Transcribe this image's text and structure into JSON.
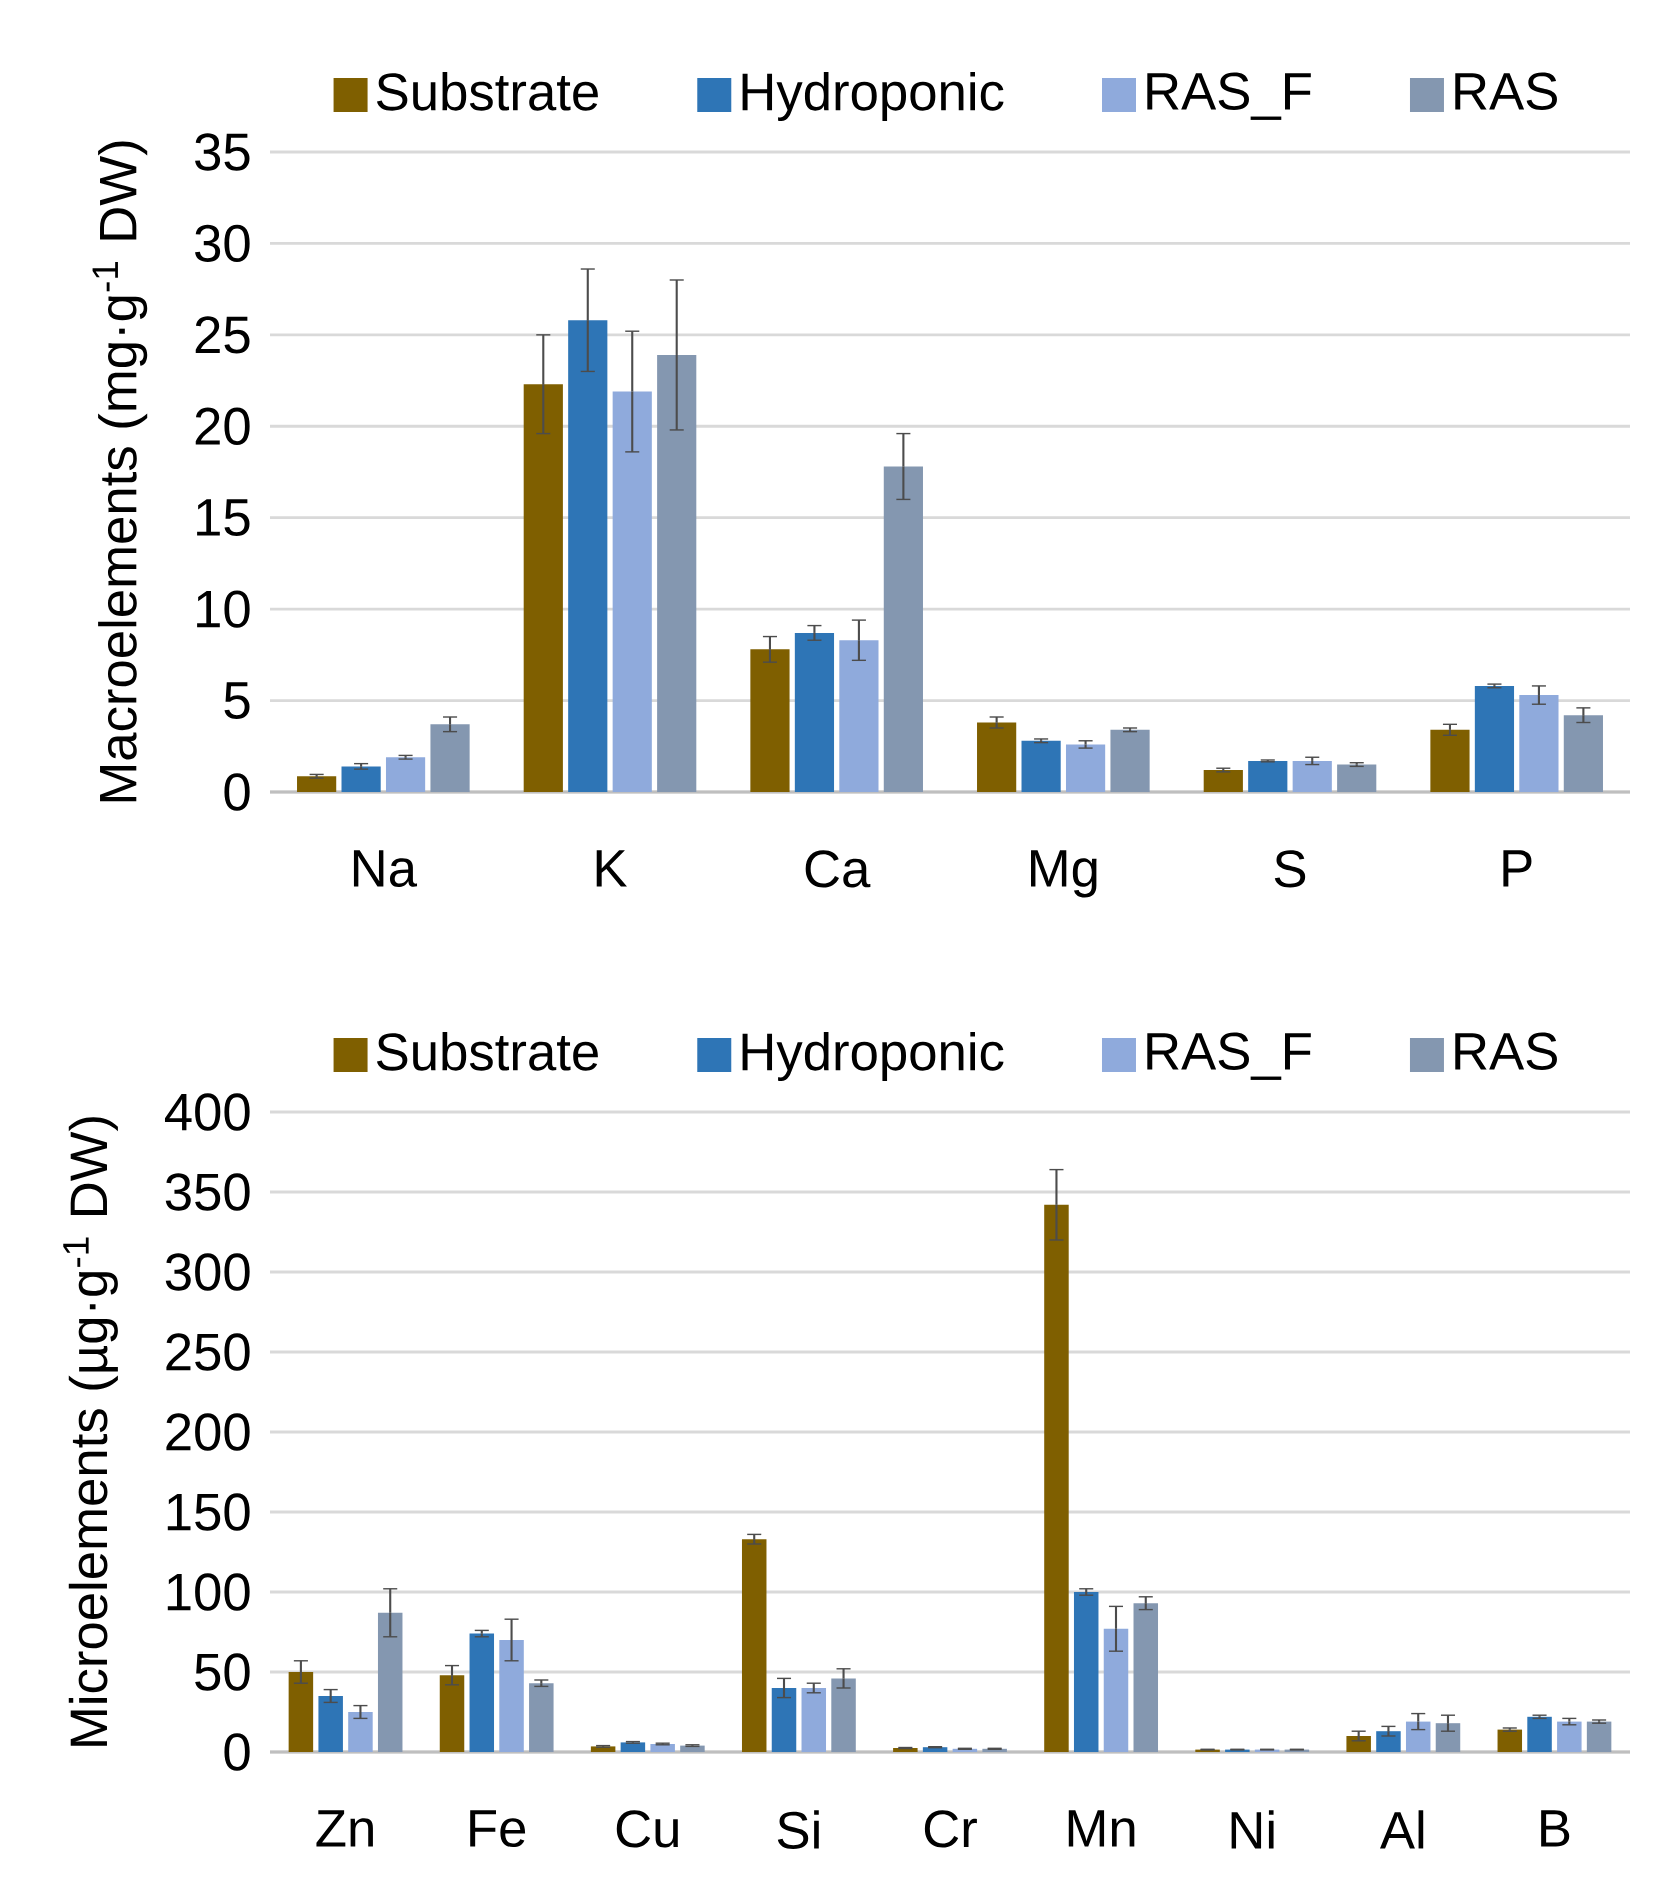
{
  "chart_data": [
    {
      "type": "bar",
      "ylabel": "Macroelements (mg·g$^{-1}$ DW)",
      "categories": [
        "Na",
        "K",
        "Ca",
        "Mg",
        "S",
        "P"
      ],
      "series": [
        {
          "name": "Substrate",
          "color": "#7f5f00",
          "values": [
            0.86,
            22.3,
            7.8,
            3.8,
            1.2,
            3.4
          ],
          "errors": [
            0.1,
            2.7,
            0.7,
            0.3,
            0.1,
            0.3
          ]
        },
        {
          "name": "Hydroponic",
          "color": "#2e75b6",
          "values": [
            1.4,
            25.8,
            8.7,
            2.8,
            1.7,
            5.8
          ],
          "errors": [
            0.15,
            2.8,
            0.4,
            0.1,
            0.05,
            0.1
          ]
        },
        {
          "name": "RAS_F",
          "color": "#8faadc",
          "values": [
            1.9,
            21.9,
            8.3,
            2.6,
            1.7,
            5.3
          ],
          "errors": [
            0.1,
            3.3,
            1.1,
            0.2,
            0.2,
            0.5
          ]
        },
        {
          "name": "RAS",
          "color": "#8497b0",
          "values": [
            3.7,
            23.9,
            17.8,
            3.4,
            1.5,
            4.2
          ],
          "errors": [
            0.4,
            4.1,
            1.8,
            0.1,
            0.1,
            0.4
          ]
        }
      ],
      "ylim": [
        0,
        35
      ],
      "yticks": [
        0,
        5,
        10,
        15,
        20,
        25,
        30,
        35
      ],
      "grid": "y",
      "legend": "top"
    },
    {
      "type": "bar",
      "ylabel": "Microelements (µg·g$^{-1}$ DW)",
      "categories": [
        "Zn",
        "Fe",
        "Cu",
        "Si",
        "Cr",
        "Mn",
        "Ni",
        "Al",
        "B"
      ],
      "series": [
        {
          "name": "Substrate",
          "color": "#7f5f00",
          "values": [
            50,
            48,
            3.5,
            133,
            2.5,
            342,
            1.5,
            10,
            14
          ],
          "errors": [
            7,
            6,
            0.5,
            3,
            0.3,
            22,
            0.2,
            3,
            1
          ]
        },
        {
          "name": "Hydroponic",
          "color": "#2e75b6",
          "values": [
            35,
            74,
            6,
            40,
            3,
            100,
            1.5,
            13,
            22
          ],
          "errors": [
            4,
            2,
            0.5,
            6,
            0.3,
            2,
            0.2,
            3,
            1
          ]
        },
        {
          "name": "RAS_F",
          "color": "#8faadc",
          "values": [
            25,
            70,
            5,
            40,
            2,
            77,
            1.5,
            19,
            19
          ],
          "errors": [
            4,
            13,
            0.5,
            3,
            0.3,
            14,
            0.2,
            5,
            2
          ]
        },
        {
          "name": "RAS",
          "color": "#8497b0",
          "values": [
            87,
            43,
            4,
            46,
            2,
            93,
            1.5,
            18,
            19
          ],
          "errors": [
            15,
            2,
            0.5,
            6,
            0.3,
            4,
            0.2,
            5,
            1
          ]
        }
      ],
      "ylim": [
        0,
        400
      ],
      "yticks": [
        0,
        50,
        100,
        150,
        200,
        250,
        300,
        350,
        400
      ],
      "grid": "y",
      "legend": "top"
    }
  ]
}
